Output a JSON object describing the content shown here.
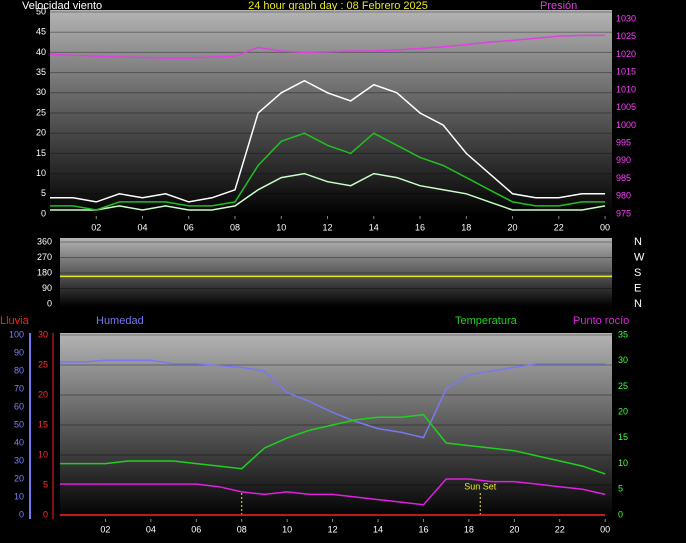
{
  "chart_data": [
    {
      "type": "line",
      "title": "24 hour graph day : 08 Febrero 2025",
      "ylabel": "Velocidad viento",
      "y2label": "Presión",
      "x": [
        0,
        1,
        2,
        3,
        4,
        5,
        6,
        7,
        8,
        9,
        10,
        11,
        12,
        13,
        14,
        15,
        16,
        17,
        18,
        19,
        20,
        21,
        22,
        23,
        24
      ],
      "xlim": [
        0,
        24.3
      ],
      "xticks": [
        {
          "value": 2,
          "label": "02"
        },
        {
          "value": 4,
          "label": "04"
        },
        {
          "value": 6,
          "label": "06"
        },
        {
          "value": 8,
          "label": "08"
        },
        10,
        12,
        14,
        16,
        18,
        20,
        22,
        {
          "value": 24,
          "label": "00"
        }
      ],
      "ylim": [
        0,
        50
      ],
      "yticks": [
        0,
        5,
        10,
        15,
        20,
        25,
        30,
        35,
        40,
        45,
        50
      ],
      "y2lim": [
        975,
        1032
      ],
      "y2ticks": [
        975,
        980,
        985,
        990,
        995,
        1000,
        1005,
        1010,
        1015,
        1020,
        1025,
        1030
      ],
      "series": [
        {
          "color": "#ffffff",
          "values": [
            4,
            4,
            3,
            5,
            4,
            5,
            3,
            4,
            6,
            25,
            30,
            33,
            30,
            28,
            32,
            30,
            25,
            22,
            15,
            10,
            5,
            4,
            4,
            5,
            5
          ]
        },
        {
          "color": "#c8ffc8",
          "values": [
            1,
            1,
            1,
            2,
            1,
            2,
            1,
            1,
            2,
            6,
            9,
            10,
            8,
            7,
            10,
            9,
            7,
            6,
            5,
            3,
            1,
            1,
            1,
            1,
            2
          ]
        },
        {
          "color": "#20c020",
          "values": [
            2,
            2,
            1,
            3,
            3,
            3,
            2,
            2,
            3,
            12,
            18,
            20,
            17,
            15,
            20,
            17,
            14,
            12,
            9,
            6,
            3,
            2,
            2,
            3,
            3
          ]
        },
        {
          "color": "#e040e0",
          "axis": "y2",
          "values": [
            1020,
            1019.8,
            1019.5,
            1019.3,
            1019.2,
            1019,
            1019,
            1019.3,
            1019.5,
            1022,
            1021,
            1020.6,
            1020.8,
            1021,
            1021,
            1021.3,
            1021.7,
            1022.2,
            1022.8,
            1023.5,
            1024,
            1024.6,
            1025.2,
            1025.4,
            1025.4
          ]
        }
      ]
    },
    {
      "type": "line",
      "x": [
        0,
        24.3
      ],
      "xlim": [
        0,
        24.3
      ],
      "ylim": [
        0,
        360
      ],
      "yticks": [
        0,
        90,
        180,
        270,
        360
      ],
      "y2lim": [
        0,
        360
      ],
      "y2ticks": [
        {
          "value": 0,
          "label": "N"
        },
        {
          "value": 90,
          "label": "E"
        },
        {
          "value": 180,
          "label": "S"
        },
        {
          "value": 270,
          "label": "W"
        },
        {
          "value": 360,
          "label": "N"
        }
      ],
      "series": [
        {
          "color": "#e8e820",
          "values": [
            160,
            160
          ]
        }
      ]
    },
    {
      "type": "line",
      "x": [
        0,
        1,
        2,
        3,
        4,
        5,
        6,
        7,
        8,
        9,
        10,
        11,
        12,
        13,
        14,
        15,
        16,
        17,
        18,
        19,
        20,
        21,
        22,
        23,
        24
      ],
      "xlim": [
        0,
        24.3
      ],
      "xticks": [
        {
          "value": 2,
          "label": "02"
        },
        {
          "value": 4,
          "label": "04"
        },
        {
          "value": 6,
          "label": "06"
        },
        {
          "value": 8,
          "label": "08"
        },
        10,
        12,
        14,
        16,
        18,
        20,
        22,
        {
          "value": 24,
          "label": "00"
        }
      ],
      "ylim": [
        0,
        30
      ],
      "yticks": [
        0,
        5,
        10,
        15,
        20,
        25,
        30
      ],
      "y2lim": [
        0,
        35
      ],
      "y2ticks": [
        0,
        5,
        10,
        15,
        20,
        25,
        30,
        35
      ],
      "y3lim": [
        0,
        100
      ],
      "y3ticks": [
        0,
        10,
        20,
        30,
        40,
        50,
        60,
        70,
        80,
        90,
        100
      ],
      "vlines": [
        8,
        18.5
      ],
      "annotation": {
        "text": "Sun Set",
        "x": 18.5
      },
      "series": [
        {
          "name": "Lluvia",
          "color": "#ff2020",
          "values": [
            0,
            0,
            0,
            0,
            0,
            0,
            0,
            0,
            0,
            0,
            0,
            0,
            0,
            0,
            0,
            0,
            0,
            0,
            0,
            0,
            0,
            0,
            0,
            0,
            0
          ]
        },
        {
          "name": "Humedad",
          "color": "#7878f0",
          "axis": "y3",
          "values": [
            85,
            85,
            86,
            86,
            86,
            84,
            84,
            83,
            82,
            80,
            68,
            63,
            57,
            52,
            48,
            46,
            43,
            70,
            78,
            80,
            82,
            84,
            84,
            84,
            84
          ]
        },
        {
          "name": "Temperatura",
          "color": "#20d020",
          "axis": "y2",
          "values": [
            10,
            10,
            10,
            10.5,
            10.5,
            10.5,
            10,
            9.5,
            9,
            13,
            15,
            16.5,
            17.5,
            18.5,
            19,
            19,
            19.5,
            14,
            13.5,
            13,
            12.5,
            11.5,
            10.5,
            9.5,
            8
          ]
        },
        {
          "name": "Punto rocío",
          "color": "#e020e0",
          "axis": "y2",
          "values": [
            6,
            6,
            6,
            6,
            6,
            6,
            6,
            5.5,
            4.5,
            4,
            4.5,
            4,
            4,
            3.5,
            3,
            2.5,
            2,
            7,
            7,
            6.5,
            6.5,
            6,
            5.5,
            5,
            4
          ]
        }
      ]
    }
  ]
}
